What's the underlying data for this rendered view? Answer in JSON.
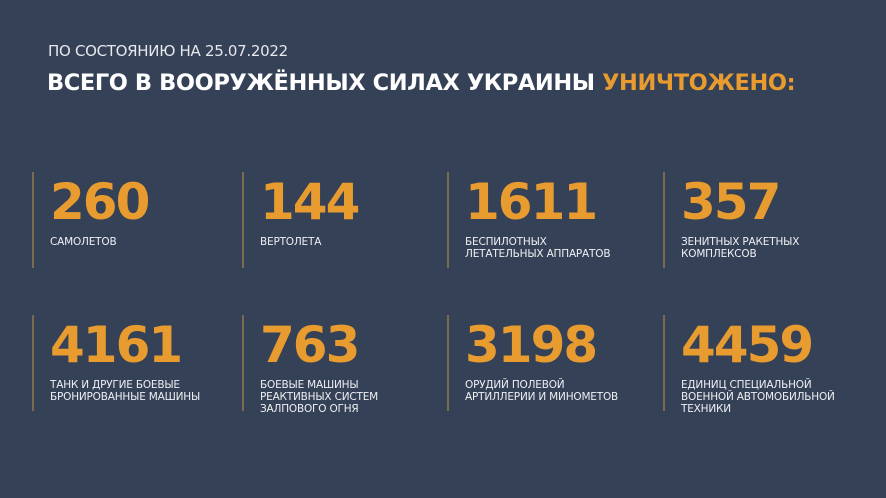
{
  "header": {
    "date_line": "ПО СОСТОЯНИЮ НА 25.07.2022",
    "title_main": "ВСЕГО В ВООРУЖЁННЫХ СИЛАХ УКРАИНЫ",
    "title_accent": "УНИЧТОЖЕНО:"
  },
  "colors": {
    "background": "#354157",
    "accent": "#e89c30"
  },
  "stats": [
    {
      "value": "260",
      "label": "САМОЛЕТОВ"
    },
    {
      "value": "144",
      "label": "ВЕРТОЛЕТА"
    },
    {
      "value": "1611",
      "label": "БЕСПИЛОТНЫХ\nЛЕТАТЕЛЬНЫХ АППАРАТОВ"
    },
    {
      "value": "357",
      "label": "ЗЕНИТНЫХ РАКЕТНЫХ\nКОМПЛЕКСОВ"
    },
    {
      "value": "4161",
      "label": "ТАНК И ДРУГИЕ БОЕВЫЕ\nБРОНИРОВАННЫЕ МАШИНЫ"
    },
    {
      "value": "763",
      "label": "БОЕВЫЕ МАШИНЫ\nРЕАКТИВНЫХ СИСТЕМ\nЗАЛПОВОГО ОГНЯ"
    },
    {
      "value": "3198",
      "label": "ОРУДИЙ ПОЛЕВОЙ\nАРТИЛЛЕРИИ И МИНОМЕТОВ"
    },
    {
      "value": "4459",
      "label": "ЕДИНИЦ СПЕЦИАЛЬНОЙ\nВОЕННОЙ АВТОМОБИЛЬНОЙ\nТЕХНИКИ"
    }
  ]
}
